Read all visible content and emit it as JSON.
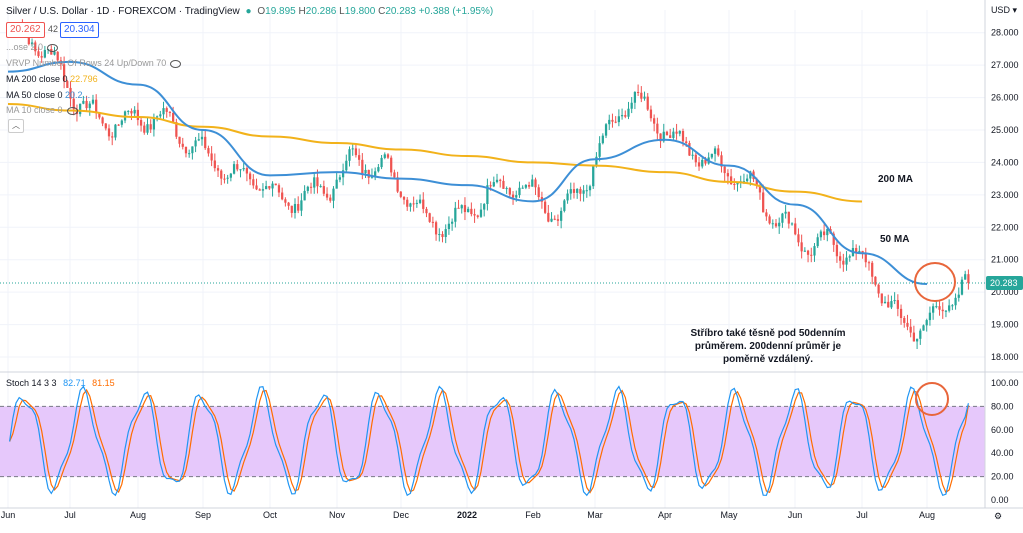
{
  "header": {
    "symbol": "Silver / U.S. Dollar · 1D · FOREXCOM · TradingView",
    "ohlc": [
      {
        "label": "O",
        "value": "19.895"
      },
      {
        "label": "H",
        "value": "20.286"
      },
      {
        "label": "L",
        "value": "19.800"
      },
      {
        "label": "C",
        "value": "20.283"
      }
    ],
    "change": "+0.388 (+1.95%)",
    "bid": "20.262",
    "spread": "42",
    "ask": "20.304",
    "currency": "USD"
  },
  "legends": {
    "row1": "...ose 2.0",
    "row2": "VRVP Number Of Rows 24 Up/Down 70",
    "row3_label": "MA 200 close 0",
    "row3_value": "22.796",
    "row4_label": "MA 50 close 0",
    "row4_value": "20.2...",
    "row5": "MA 10 close 0"
  },
  "colors": {
    "up": "#26a69a",
    "down": "#ef5350",
    "ma200": "#f2b21a",
    "ma50": "#3d8fd6",
    "stochK": "#2196f3",
    "stochD": "#ff6d00",
    "stochBand": "#e6c8fb",
    "circle": "#e8663b",
    "current_price": "#26a69a"
  },
  "chart_data": {
    "type": "candlestick",
    "title": "Silver / U.S. Dollar · 1D · FOREXCOM",
    "price_ylim": [
      17.6,
      28.7
    ],
    "price_ticks": [
      "28.000",
      "27.000",
      "26.000",
      "25.000",
      "24.000",
      "23.000",
      "22.000",
      "21.000",
      "20.000",
      "19.000",
      "18.000"
    ],
    "current_price": 20.283,
    "current_price_label": "20.283",
    "x_ticks": [
      "Jun",
      "Jul",
      "Aug",
      "Sep",
      "Oct",
      "Nov",
      "Dec",
      "2022",
      "Feb",
      "Mar",
      "Apr",
      "May",
      "Jun",
      "Jul",
      "Aug"
    ],
    "monthly_path": [
      {
        "month": "Jun",
        "price": 28.0
      },
      {
        "month": "Jul",
        "price": 26.1
      },
      {
        "month": "Aug",
        "price": 25.0
      },
      {
        "month": "Sep",
        "price": 24.5
      },
      {
        "month": "Oct",
        "price": 22.3
      },
      {
        "month": "Nov",
        "price": 24.4
      },
      {
        "month": "Dec",
        "price": 22.3
      },
      {
        "month": "2022",
        "price": 23.0
      },
      {
        "month": "Feb",
        "price": 22.6
      },
      {
        "month": "Mar",
        "price": 25.5
      },
      {
        "month": "Apr",
        "price": 24.8
      },
      {
        "month": "May",
        "price": 22.4
      },
      {
        "month": "Jun",
        "price": 21.7
      },
      {
        "month": "Jul",
        "price": 19.0
      },
      {
        "month": "Aug",
        "price": 20.283
      }
    ],
    "ma200": [
      26.0,
      25.8,
      25.6,
      25.4,
      25.1,
      24.8,
      24.6,
      24.4,
      24.2,
      24.0,
      23.9,
      23.7,
      23.4,
      23.1,
      22.796
    ],
    "ma50": [
      26.8,
      27.1,
      26.4,
      25.0,
      23.6,
      23.7,
      23.5,
      23.3,
      22.8,
      24.1,
      24.7,
      23.9,
      22.7,
      21.2,
      20.25
    ],
    "annotations": {
      "ma200": "200 MA",
      "ma50": "50 MA",
      "note": "Stříbro také těsně pod 50denním průměrem. 200denní průměr je poměrně vzdálený."
    },
    "stoch": {
      "label": "Stoch",
      "params": "14 3 3",
      "k_value": "82.71",
      "d_value": "81.15",
      "ylim": [
        0,
        100
      ],
      "upper": 80,
      "lower": 20,
      "ticks": [
        "100.00",
        "80.00",
        "60.00",
        "40.00",
        "20.00",
        "0.00"
      ]
    }
  }
}
